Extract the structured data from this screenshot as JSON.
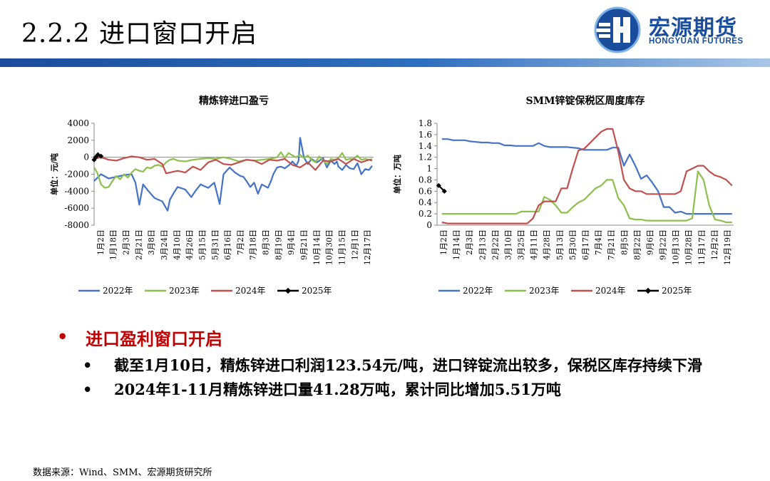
{
  "title": "2.2.2 进口窗口开启",
  "logo": {
    "cn": "宏源期货",
    "en": "HONGYUAN FUTURES"
  },
  "colors": {
    "brand": "#1a4d9c",
    "accent_red": "#c00000",
    "s2022": "#4472c4",
    "s2023": "#8cbf4c",
    "s2024": "#c0504d",
    "s2025": "#000000"
  },
  "bullets": {
    "main": "进口盈利窗口开启",
    "sub": [
      "截至1月10日，精炼锌进口利润123.54元/吨，进口锌锭流出较多，保税区库存持续下滑",
      "2024年1-11月精炼锌进口量41.28万吨，累计同比增加5.51万吨"
    ]
  },
  "source": "数据来源：Wind、SMM、宏源期货研究所",
  "chart_data": [
    {
      "type": "line",
      "title": "精炼锌进口盈亏",
      "ylabel": "单位：元/吨",
      "ylim": [
        -8000,
        4000
      ],
      "yticks": [
        4000,
        2000,
        0,
        -2000,
        -4000,
        -6000,
        -8000
      ],
      "x_ticks": [
        "1月2日",
        "1月18日",
        "2月3日",
        "2月21日",
        "3月8日",
        "3月24日",
        "4月10日",
        "4月26日",
        "5月15日",
        "5月31日",
        "6月16日",
        "7月2日",
        "7月18日",
        "8月3日",
        "8月19日",
        "9月4日",
        "9月21日",
        "10月14日",
        "10月30日",
        "11月15日",
        "12月1日",
        "12月17日"
      ],
      "x_range_days": [
        1,
        366
      ],
      "series": [
        {
          "name": "2022年",
          "x": [
            1,
            10,
            20,
            30,
            40,
            50,
            55,
            60,
            65,
            72,
            80,
            90,
            97,
            100,
            105,
            110,
            120,
            128,
            133,
            140,
            150,
            158,
            165,
            170,
            178,
            185,
            192,
            196,
            200,
            205,
            210,
            215,
            220,
            228,
            232,
            235,
            240,
            245,
            250,
            256,
            260,
            265,
            268,
            270,
            275,
            280,
            285,
            292,
            300,
            305,
            310,
            315,
            318,
            320,
            325,
            330,
            335,
            340,
            345,
            350,
            355,
            360,
            364
          ],
          "values": [
            -2800,
            -2000,
            -2500,
            -2300,
            -2100,
            -2000,
            -3000,
            -5600,
            -3200,
            -4000,
            -4800,
            -5200,
            -6300,
            -5000,
            -4200,
            -3500,
            -3800,
            -4700,
            -4000,
            -3200,
            -3600,
            -3000,
            -5500,
            -2000,
            -1200,
            -1800,
            -2200,
            -2300,
            -2800,
            -3500,
            -3000,
            -4300,
            -3200,
            -3600,
            -2800,
            -2000,
            -1200,
            -1100,
            -1300,
            -900,
            -500,
            -1000,
            -400,
            2300,
            0,
            -800,
            -200,
            -600,
            -100,
            -1200,
            -400,
            -800,
            -500,
            -1100,
            -1500,
            -900,
            -1300,
            -1400,
            -700,
            -2000,
            -1400,
            -1500,
            -1000
          ]
        },
        {
          "name": "2023年",
          "x": [
            1,
            5,
            10,
            15,
            20,
            25,
            30,
            35,
            40,
            45,
            50,
            55,
            60,
            65,
            70,
            75,
            80,
            85,
            90,
            95,
            100,
            105,
            110,
            120,
            130,
            140,
            150,
            160,
            170,
            180,
            190,
            200,
            210,
            220,
            230,
            240,
            245,
            250,
            255,
            260,
            265,
            270,
            275,
            280,
            285,
            290,
            295,
            300,
            305,
            310,
            315,
            320,
            325,
            330,
            335,
            340,
            345,
            350,
            355,
            360,
            364
          ],
          "values": [
            -1200,
            -1800,
            -3200,
            -3600,
            -3500,
            -2800,
            -2200,
            -2600,
            -2000,
            -2400,
            -1800,
            -1400,
            -1600,
            -1700,
            -1200,
            -1300,
            -1000,
            -900,
            -1100,
            -600,
            -300,
            -200,
            -400,
            -500,
            -300,
            -200,
            -100,
            -200,
            0,
            -200,
            -500,
            -300,
            -400,
            -300,
            -200,
            0,
            600,
            -100,
            500,
            200,
            0,
            300,
            -100,
            200,
            -300,
            -600,
            100,
            -400,
            -800,
            -200,
            -300,
            -100,
            500,
            -300,
            -200,
            -200,
            200,
            -300,
            -200,
            -300,
            -200
          ]
        },
        {
          "name": "2024年",
          "x": [
            1,
            10,
            20,
            30,
            40,
            50,
            60,
            70,
            80,
            90,
            95,
            100,
            110,
            120,
            130,
            140,
            150,
            160,
            170,
            180,
            190,
            200,
            210,
            220,
            230,
            240,
            250,
            260,
            270,
            280,
            290,
            300,
            310,
            320,
            330,
            340,
            350,
            360,
            364
          ],
          "values": [
            -200,
            0,
            -300,
            -400,
            -100,
            100,
            0,
            -300,
            -200,
            -800,
            -1900,
            -1800,
            -1600,
            -1800,
            -1100,
            -1500,
            -600,
            -300,
            -800,
            -900,
            -600,
            -300,
            -400,
            -800,
            -300,
            -400,
            -200,
            -900,
            -1200,
            -600,
            -1500,
            -400,
            -500,
            -200,
            -800,
            -200,
            -600,
            -300,
            -400
          ]
        },
        {
          "name": "2025年",
          "x": [
            1,
            3,
            6,
            10
          ],
          "values": [
            -300,
            0,
            300,
            124
          ]
        }
      ]
    },
    {
      "type": "line",
      "title": "SMM锌锭保税区周度库存",
      "ylabel": "单位：万吨",
      "ylim": [
        0,
        1.8
      ],
      "yticks": [
        1.8,
        1.6,
        1.4,
        1.2,
        1,
        0.8,
        0.6,
        0.4,
        0.2,
        0
      ],
      "x_ticks": [
        "1月2日",
        "1月14日",
        "2月3日",
        "2月13日",
        "2月22日",
        "3月10日",
        "3月25日",
        "4月11日",
        "4月28日",
        "5月13日",
        "5月30日",
        "6月17日",
        "7月4日",
        "7月21日",
        "8月5日",
        "8月22日",
        "9月6日",
        "9月22日",
        "10月13日",
        "10月28日",
        "11月17日",
        "12月2日",
        "12月19日"
      ],
      "x_range_days": [
        1,
        366
      ],
      "series": [
        {
          "name": "2022年",
          "x": [
            7,
            14,
            21,
            28,
            35,
            42,
            49,
            56,
            63,
            70,
            77,
            84,
            91,
            98,
            105,
            112,
            119,
            126,
            133,
            140,
            147,
            154,
            161,
            168,
            175,
            182,
            189,
            196,
            203,
            210,
            217,
            224,
            231,
            238,
            245,
            252,
            259,
            266,
            273,
            280,
            287,
            294,
            301,
            308,
            315,
            322,
            329,
            336,
            343,
            350,
            357,
            364
          ],
          "values": [
            1.52,
            1.52,
            1.5,
            1.5,
            1.5,
            1.48,
            1.47,
            1.46,
            1.46,
            1.45,
            1.45,
            1.41,
            1.41,
            1.4,
            1.4,
            1.4,
            1.4,
            1.45,
            1.4,
            1.38,
            1.38,
            1.38,
            1.38,
            1.37,
            1.36,
            1.33,
            1.33,
            1.33,
            1.33,
            1.33,
            1.37,
            1.37,
            1.05,
            1.25,
            1.05,
            0.82,
            0.88,
            0.75,
            0.6,
            0.32,
            0.32,
            0.22,
            0.24,
            0.2,
            0.2,
            0.2,
            0.2,
            0.2,
            0.2,
            0.2,
            0.2,
            0.2
          ]
        },
        {
          "name": "2023年",
          "x": [
            7,
            14,
            21,
            28,
            35,
            42,
            49,
            56,
            63,
            70,
            77,
            84,
            91,
            98,
            105,
            112,
            119,
            126,
            133,
            140,
            147,
            154,
            161,
            168,
            175,
            182,
            189,
            196,
            203,
            210,
            217,
            224,
            231,
            238,
            245,
            252,
            259,
            266,
            273,
            280,
            287,
            294,
            301,
            308,
            315,
            322,
            329,
            336,
            343,
            350,
            357,
            364
          ],
          "values": [
            0.2,
            0.2,
            0.2,
            0.2,
            0.2,
            0.2,
            0.2,
            0.2,
            0.2,
            0.2,
            0.2,
            0.2,
            0.2,
            0.2,
            0.24,
            0.24,
            0.24,
            0.24,
            0.5,
            0.45,
            0.35,
            0.22,
            0.22,
            0.32,
            0.4,
            0.45,
            0.55,
            0.65,
            0.7,
            0.8,
            0.8,
            0.48,
            0.35,
            0.12,
            0.1,
            0.1,
            0.08,
            0.08,
            0.08,
            0.08,
            0.08,
            0.08,
            0.08,
            0.08,
            0.12,
            0.95,
            0.8,
            0.35,
            0.1,
            0.08,
            0.05,
            0.05
          ]
        },
        {
          "name": "2024年",
          "x": [
            7,
            14,
            21,
            28,
            35,
            42,
            49,
            56,
            63,
            70,
            77,
            84,
            91,
            98,
            105,
            112,
            119,
            126,
            133,
            140,
            147,
            154,
            161,
            168,
            175,
            182,
            189,
            196,
            203,
            210,
            217,
            224,
            231,
            238,
            245,
            252,
            259,
            266,
            273,
            280,
            287,
            294,
            301,
            308,
            315,
            322,
            329,
            336,
            343,
            350,
            357,
            364
          ],
          "values": [
            0.05,
            0.03,
            0.03,
            0.03,
            0.03,
            0.03,
            0.03,
            0.03,
            0.03,
            0.03,
            0.03,
            0.03,
            0.03,
            0.03,
            0.03,
            0.03,
            0.12,
            0.35,
            0.42,
            0.42,
            0.42,
            0.65,
            0.65,
            1.0,
            1.32,
            1.35,
            1.45,
            1.55,
            1.65,
            1.7,
            1.7,
            1.3,
            0.8,
            0.65,
            0.6,
            0.6,
            0.55,
            0.55,
            0.55,
            0.55,
            0.55,
            0.55,
            0.6,
            0.95,
            1.0,
            1.05,
            1.05,
            0.95,
            0.88,
            0.85,
            0.8,
            0.7
          ]
        },
        {
          "name": "2025年",
          "x": [
            3,
            10
          ],
          "values": [
            0.7,
            0.6
          ]
        }
      ]
    }
  ]
}
